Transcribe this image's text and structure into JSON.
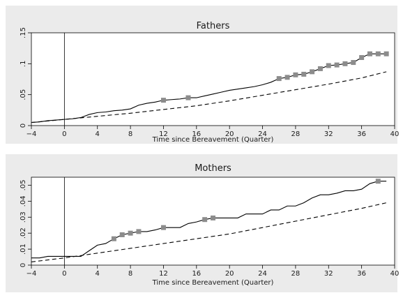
{
  "chart_data": [
    {
      "type": "line",
      "title": "Fathers",
      "xlabel": "Time since Bereavement (Quarter)",
      "ylabel": "",
      "xlim": [
        -4,
        40
      ],
      "ylim": [
        0,
        0.15
      ],
      "xticks": [
        -4,
        0,
        4,
        8,
        12,
        16,
        20,
        24,
        28,
        32,
        36,
        40
      ],
      "xtick_labels": [
        "−4",
        "0",
        "4",
        "8",
        "12",
        "16",
        "20",
        "24",
        "28",
        "32",
        "36",
        "40"
      ],
      "yticks": [
        0,
        0.05,
        0.1,
        0.15
      ],
      "ytick_labels": [
        "0",
        ".05",
        ".1",
        ".15"
      ],
      "vline_x": 0,
      "series": [
        {
          "style": "solid",
          "x": [
            -4,
            -3,
            -2,
            -1,
            0,
            1,
            2,
            3,
            4,
            5,
            6,
            7,
            8,
            9,
            10,
            11,
            12,
            13,
            14,
            15,
            16,
            17,
            18,
            19,
            20,
            21,
            22,
            23,
            24,
            25,
            26,
            27,
            28,
            29,
            30,
            31,
            32,
            33,
            34,
            35,
            36,
            37,
            38,
            39
          ],
          "y": [
            0.005,
            0.006,
            0.008,
            0.009,
            0.01,
            0.011,
            0.013,
            0.018,
            0.021,
            0.022,
            0.024,
            0.025,
            0.027,
            0.033,
            0.036,
            0.038,
            0.041,
            0.042,
            0.043,
            0.045,
            0.045,
            0.048,
            0.051,
            0.054,
            0.057,
            0.059,
            0.061,
            0.063,
            0.066,
            0.07,
            0.076,
            0.078,
            0.082,
            0.083,
            0.087,
            0.092,
            0.097,
            0.098,
            0.1,
            0.102,
            0.11,
            0.116,
            0.116,
            0.116
          ],
          "markers_x": [
            12,
            15,
            26,
            27,
            28,
            29,
            30,
            31,
            32,
            33,
            34,
            35,
            36,
            37,
            38,
            39
          ],
          "markers_y": [
            0.041,
            0.045,
            0.076,
            0.078,
            0.082,
            0.083,
            0.087,
            0.092,
            0.097,
            0.098,
            0.1,
            0.102,
            0.11,
            0.116,
            0.116,
            0.116
          ]
        },
        {
          "style": "dashed",
          "x": [
            -4,
            0,
            4,
            8,
            12,
            16,
            20,
            24,
            28,
            32,
            36,
            39
          ],
          "y": [
            0.005,
            0.01,
            0.015,
            0.02,
            0.026,
            0.032,
            0.04,
            0.049,
            0.058,
            0.067,
            0.077,
            0.087
          ]
        }
      ]
    },
    {
      "type": "line",
      "title": "Mothers",
      "xlabel": "Time since Bereavement (Quarter)",
      "ylabel": "",
      "xlim": [
        -4,
        40
      ],
      "ylim": [
        0,
        0.055
      ],
      "xticks": [
        -4,
        0,
        4,
        8,
        12,
        16,
        20,
        24,
        28,
        32,
        36,
        40
      ],
      "xtick_labels": [
        "−4",
        "0",
        "4",
        "8",
        "12",
        "16",
        "20",
        "24",
        "28",
        "32",
        "36",
        "40"
      ],
      "yticks": [
        0,
        0.01,
        0.02,
        0.03,
        0.04,
        0.05
      ],
      "ytick_labels": [
        "0",
        ".01",
        ".02",
        ".03",
        ".04",
        ".05"
      ],
      "vline_x": 0,
      "series": [
        {
          "style": "solid",
          "x": [
            -4,
            -3,
            -2,
            -1,
            0,
            1,
            2,
            3,
            4,
            5,
            6,
            7,
            8,
            9,
            10,
            11,
            12,
            13,
            14,
            15,
            16,
            17,
            18,
            19,
            20,
            21,
            22,
            23,
            24,
            25,
            26,
            27,
            28,
            29,
            30,
            31,
            32,
            33,
            34,
            35,
            36,
            37,
            38,
            39
          ],
          "y": [
            0.0045,
            0.0045,
            0.0055,
            0.0055,
            0.0055,
            0.0055,
            0.0055,
            0.009,
            0.0125,
            0.0135,
            0.0165,
            0.019,
            0.02,
            0.021,
            0.021,
            0.022,
            0.0235,
            0.0235,
            0.0235,
            0.026,
            0.027,
            0.0285,
            0.0295,
            0.0295,
            0.0295,
            0.0295,
            0.032,
            0.032,
            0.032,
            0.0345,
            0.0345,
            0.037,
            0.037,
            0.039,
            0.042,
            0.044,
            0.044,
            0.045,
            0.0465,
            0.0465,
            0.0475,
            0.051,
            0.0525,
            0.0525
          ],
          "markers_x": [
            6,
            7,
            8,
            9,
            12,
            17,
            18,
            38
          ],
          "markers_y": [
            0.0165,
            0.019,
            0.02,
            0.021,
            0.0235,
            0.0285,
            0.0295,
            0.0525
          ]
        },
        {
          "style": "dashed",
          "x": [
            -4,
            0,
            4,
            8,
            12,
            16,
            20,
            24,
            28,
            32,
            36,
            39
          ],
          "y": [
            0.002,
            0.0045,
            0.0075,
            0.0105,
            0.0135,
            0.0165,
            0.0195,
            0.0235,
            0.0275,
            0.0315,
            0.0355,
            0.039
          ]
        }
      ]
    }
  ],
  "colors": {
    "background": "#ebebeb",
    "plot_region": "#ffffff",
    "line": "#000000",
    "marker": "#8c8c8c"
  }
}
